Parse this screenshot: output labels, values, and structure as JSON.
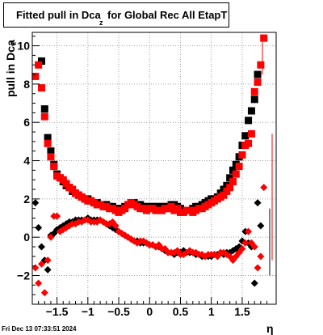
{
  "title": {
    "main": "Fitted pull in Dca",
    "subscript": "z",
    "rest": "for Global Rec All EtapT"
  },
  "timestamp": "Fri Dec 13 07:33:51 2024",
  "chart_data": {
    "type": "scatter",
    "title": "Fitted pull in Dca_z for Global Rec All EtapT",
    "xlabel": "η",
    "ylabel": "pull in Dca_z",
    "xlim": [
      -1.9,
      2.05
    ],
    "ylim": [
      -3.5,
      10.7
    ],
    "grid": true,
    "xticks": [
      -1.5,
      -1,
      -0.5,
      0,
      0.5,
      1,
      1.5
    ],
    "xtick_labels": [
      "−1.5",
      "−1",
      "−0.5",
      "0",
      "0.5",
      "1",
      "1.5"
    ],
    "yticks": [
      -2,
      0,
      2,
      4,
      6,
      8,
      10
    ],
    "ytick_labels": [
      "−2",
      "0",
      "2",
      "4",
      "6",
      "8",
      "10"
    ],
    "colors": {
      "black": "#000000",
      "red": "#ff0000",
      "grid": "#a0a0a0"
    },
    "series": [
      {
        "marker": "square",
        "color": "#000000",
        "x": [
          -1.75,
          -1.7,
          -1.65,
          -1.6,
          -1.55,
          -1.5,
          -1.45,
          -1.4,
          -1.35,
          -1.3,
          -1.25,
          -1.2,
          -1.15,
          -1.1,
          -1.05,
          -1.0,
          -0.95,
          -0.9,
          -0.85,
          -0.8,
          -0.75,
          -0.7,
          -0.65,
          -0.6,
          -0.55,
          -0.5,
          -0.45,
          -0.4,
          -0.35,
          -0.3,
          -0.25,
          -0.2,
          -0.15,
          -0.1,
          -0.05,
          0.0,
          0.05,
          0.1,
          0.15,
          0.2,
          0.25,
          0.3,
          0.35,
          0.4,
          0.45,
          0.5,
          0.55,
          0.6,
          0.65,
          0.7,
          0.75,
          0.8,
          0.85,
          0.9,
          0.95,
          1.0,
          1.05,
          1.1,
          1.15,
          1.2,
          1.25,
          1.3,
          1.35,
          1.4,
          1.45,
          1.5,
          1.55,
          1.6,
          1.65,
          1.7,
          1.75
        ],
        "y": [
          9.2,
          6.7,
          5.2,
          4.5,
          3.8,
          3.3,
          3.1,
          2.9,
          2.7,
          2.6,
          2.4,
          2.3,
          2.2,
          2.1,
          2.0,
          2.0,
          1.9,
          1.8,
          1.8,
          1.7,
          1.7,
          1.7,
          1.6,
          1.6,
          1.5,
          1.5,
          1.5,
          1.6,
          1.7,
          1.8,
          1.8,
          1.7,
          1.7,
          1.6,
          1.6,
          1.6,
          1.6,
          1.6,
          1.6,
          1.6,
          1.6,
          1.6,
          1.7,
          1.7,
          1.6,
          1.5,
          1.4,
          1.4,
          1.4,
          1.5,
          1.6,
          1.6,
          1.7,
          1.8,
          1.9,
          2.0,
          2.0,
          2.1,
          2.3,
          2.5,
          2.7,
          3.1,
          3.5,
          3.8,
          4.2,
          4.8,
          5.3,
          6.1,
          6.6,
          7.2,
          8.5
        ]
      },
      {
        "marker": "square",
        "color": "#ff0000",
        "x": [
          -1.85,
          -1.8,
          -1.75,
          -1.7,
          -1.65,
          -1.6,
          -1.55,
          -1.5,
          -1.45,
          -1.4,
          -1.35,
          -1.3,
          -1.25,
          -1.2,
          -1.15,
          -1.1,
          -1.05,
          -1.0,
          -0.95,
          -0.9,
          -0.85,
          -0.8,
          -0.75,
          -0.7,
          -0.65,
          -0.6,
          -0.55,
          -0.5,
          -0.45,
          -0.4,
          -0.35,
          -0.3,
          -0.25,
          -0.2,
          -0.15,
          -0.1,
          -0.05,
          0.0,
          0.05,
          0.1,
          0.15,
          0.2,
          0.25,
          0.3,
          0.35,
          0.4,
          0.45,
          0.5,
          0.55,
          0.6,
          0.65,
          0.7,
          0.75,
          0.8,
          0.85,
          0.9,
          0.95,
          1.0,
          1.05,
          1.1,
          1.15,
          1.2,
          1.25,
          1.3,
          1.35,
          1.4,
          1.45,
          1.5,
          1.55,
          1.6,
          1.65,
          1.7,
          1.75,
          1.8,
          1.85
        ],
        "y": [
          8.4,
          9.0,
          7.8,
          6.3,
          4.9,
          4.2,
          3.7,
          3.2,
          3.1,
          3.0,
          2.8,
          2.6,
          2.5,
          2.3,
          2.2,
          2.1,
          2.0,
          1.9,
          1.9,
          1.8,
          1.7,
          1.7,
          1.6,
          1.6,
          1.5,
          1.5,
          1.4,
          1.3,
          1.4,
          1.5,
          1.7,
          1.8,
          1.7,
          1.6,
          1.5,
          1.5,
          1.4,
          1.5,
          1.5,
          1.4,
          1.4,
          1.4,
          1.5,
          1.5,
          1.6,
          1.4,
          1.5,
          1.3,
          1.3,
          1.4,
          1.4,
          1.3,
          1.4,
          1.5,
          1.5,
          1.6,
          1.7,
          1.8,
          1.9,
          2.0,
          2.1,
          2.2,
          2.4,
          2.6,
          2.9,
          3.3,
          3.7,
          4.3,
          4.8,
          4.9,
          5.4,
          7.6,
          8.1,
          9.0,
          10.4
        ]
      },
      {
        "marker": "diamond",
        "color": "#000000",
        "x": [
          -1.85,
          -1.8,
          -1.75,
          -1.7,
          -1.65,
          -1.6,
          -1.55,
          -1.5,
          -1.45,
          -1.4,
          -1.35,
          -1.3,
          -1.25,
          -1.2,
          -1.15,
          -1.1,
          -1.05,
          -1.0,
          -0.95,
          -0.9,
          -0.85,
          -0.8,
          -0.75,
          -0.7,
          -0.65,
          -0.6,
          -0.55,
          -0.5,
          -0.45,
          -0.4,
          -0.35,
          -0.3,
          -0.25,
          -0.2,
          -0.15,
          -0.1,
          -0.05,
          0.0,
          0.05,
          0.1,
          0.15,
          0.2,
          0.25,
          0.3,
          0.35,
          0.4,
          0.45,
          0.5,
          0.55,
          0.6,
          0.65,
          0.7,
          0.75,
          0.8,
          0.85,
          0.9,
          0.95,
          1.0,
          1.05,
          1.1,
          1.15,
          1.2,
          1.25,
          1.3,
          1.35,
          1.4,
          1.45,
          1.5,
          1.55,
          1.6,
          1.65,
          1.7,
          1.75,
          1.8
        ],
        "y": [
          1.8,
          0.5,
          -0.5,
          -1.2,
          -1.7,
          0.1,
          0.2,
          0.4,
          0.5,
          0.6,
          0.7,
          0.8,
          0.8,
          0.9,
          0.9,
          0.9,
          0.9,
          1.0,
          0.9,
          0.9,
          0.9,
          0.9,
          0.8,
          0.7,
          0.6,
          0.5,
          0.4,
          0.3,
          0.2,
          0.1,
          0.0,
          -0.1,
          -0.2,
          -0.2,
          -0.3,
          -0.3,
          -0.3,
          -0.4,
          -0.4,
          -0.5,
          -0.5,
          -0.6,
          -0.7,
          -0.8,
          -0.8,
          -0.9,
          -0.8,
          -0.8,
          -0.7,
          -0.8,
          -0.8,
          -0.8,
          -0.9,
          -0.9,
          -1.0,
          -1.0,
          -1.0,
          -1.0,
          -0.9,
          -0.9,
          -0.8,
          -0.9,
          -0.8,
          -0.8,
          -0.7,
          -0.6,
          -0.5,
          -0.2,
          0.3,
          -0.3,
          -0.5,
          -2.4,
          1.8,
          0.6
        ]
      },
      {
        "marker": "diamond",
        "color": "#ff0000",
        "x": [
          -1.85,
          -1.8,
          -1.75,
          -1.7,
          -1.65,
          -1.6,
          -1.55,
          -1.5,
          -1.45,
          -1.4,
          -1.35,
          -1.3,
          -1.25,
          -1.2,
          -1.15,
          -1.1,
          -1.05,
          -1.0,
          -0.95,
          -0.9,
          -0.85,
          -0.8,
          -0.75,
          -0.7,
          -0.65,
          -0.6,
          -0.55,
          -0.5,
          -0.45,
          -0.4,
          -0.35,
          -0.3,
          -0.25,
          -0.2,
          -0.15,
          -0.1,
          -0.05,
          0.0,
          0.05,
          0.1,
          0.15,
          0.2,
          0.25,
          0.3,
          0.35,
          0.4,
          0.45,
          0.5,
          0.55,
          0.6,
          0.65,
          0.7,
          0.75,
          0.8,
          0.85,
          0.9,
          0.95,
          1.0,
          1.05,
          1.1,
          1.15,
          1.2,
          1.25,
          1.3,
          1.35,
          1.4,
          1.45,
          1.5,
          1.55,
          1.6,
          1.65,
          1.7,
          1.75,
          1.8,
          1.85
        ],
        "y": [
          -1.6,
          -2.4,
          -1.4,
          -2.9,
          -1.2,
          0.0,
          1.1,
          1.1,
          0.3,
          0.4,
          0.5,
          0.6,
          0.7,
          0.7,
          0.8,
          0.8,
          0.9,
          0.9,
          0.8,
          0.8,
          0.8,
          0.9,
          0.8,
          0.7,
          0.7,
          0.8,
          0.6,
          0.3,
          0.2,
          0.1,
          0.0,
          -0.1,
          -0.2,
          -0.3,
          -0.2,
          -0.2,
          -0.3,
          -0.4,
          -0.4,
          -0.5,
          -0.4,
          -0.6,
          -0.6,
          -0.8,
          -0.8,
          -0.8,
          -0.7,
          -0.9,
          -0.9,
          -0.8,
          -0.7,
          -0.8,
          -0.8,
          -0.9,
          -0.9,
          -1.0,
          -0.9,
          -0.9,
          -0.9,
          -1.0,
          -0.8,
          -0.8,
          -0.9,
          -1.0,
          -1.2,
          -1.0,
          -0.8,
          -0.6,
          -0.3,
          0.3,
          -0.3,
          -0.5,
          -1.6,
          -1.0,
          2.6
        ]
      }
    ]
  }
}
